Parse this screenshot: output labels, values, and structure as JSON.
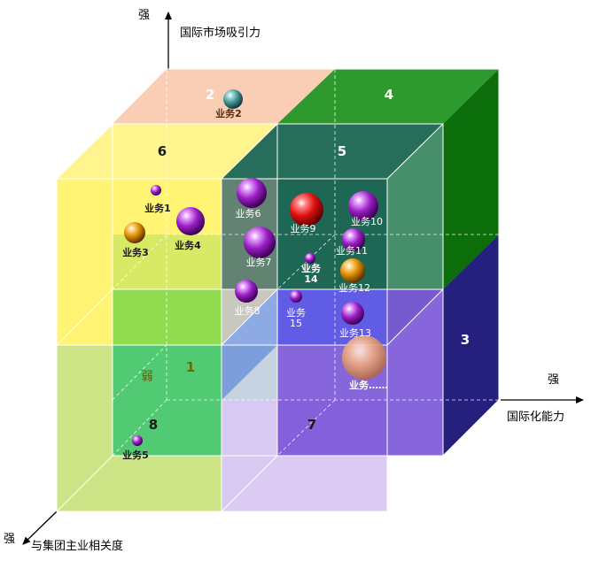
{
  "axes": {
    "y_label": "国际市场吸引力",
    "y_strong": "强",
    "x_label": "国际化能力",
    "x_strong": "强",
    "z_label": "与集团主业相关度",
    "z_strong": "强",
    "weak": "弱"
  },
  "regions": {
    "r1": "1",
    "r2": "2",
    "r3": "3",
    "r4": "4",
    "r5": "5",
    "r6": "6",
    "r7": "7",
    "r8": "8"
  },
  "businesses": [
    {
      "id": "b1",
      "label": "业务1"
    },
    {
      "id": "b2",
      "label": "业务2"
    },
    {
      "id": "b3",
      "label": "业务3"
    },
    {
      "id": "b4",
      "label": "业务4"
    },
    {
      "id": "b5",
      "label": "业务5"
    },
    {
      "id": "b6",
      "label": "业务6"
    },
    {
      "id": "b7",
      "label": "业务7"
    },
    {
      "id": "b8",
      "label": "业务8"
    },
    {
      "id": "b9",
      "label": "业务9"
    },
    {
      "id": "b10",
      "label": "业务10"
    },
    {
      "id": "b11",
      "label": "业务11"
    },
    {
      "id": "b12",
      "label": "业务12"
    },
    {
      "id": "b13",
      "label": "业务13"
    },
    {
      "id": "b14",
      "label": "业务14"
    },
    {
      "id": "b15",
      "label": "业务15"
    },
    {
      "id": "bmore",
      "label": "业务……"
    }
  ],
  "colors": {
    "purple_ball": "#9b1fc4",
    "red_ball": "#e01010",
    "orange_ball": "#d98a00",
    "teal_ball": "#3a8c8c",
    "peach_ball": "#f0a070"
  }
}
